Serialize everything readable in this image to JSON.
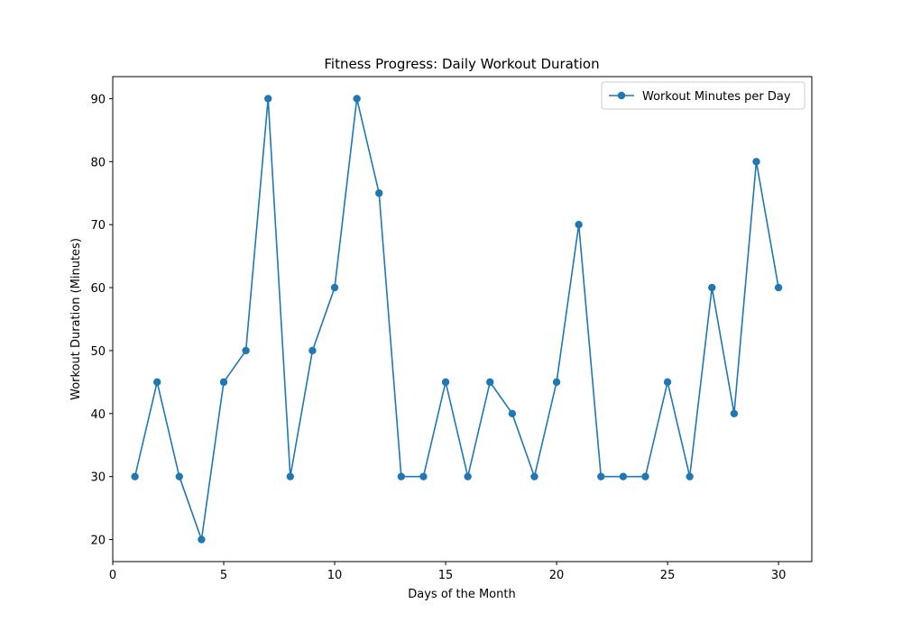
{
  "chart_data": {
    "type": "line",
    "title": "Fitness Progress: Daily Workout Duration",
    "xlabel": "Days of the Month",
    "ylabel": "Workout Duration (Minutes)",
    "xlim": [
      0,
      31.5
    ],
    "ylim": [
      16.5,
      93.5
    ],
    "xticks": [
      0,
      5,
      10,
      15,
      20,
      25,
      30
    ],
    "yticks": [
      20,
      30,
      40,
      50,
      60,
      70,
      80,
      90
    ],
    "legend_position": "top-right",
    "grid": false,
    "series": [
      {
        "name": "Workout Minutes per Day",
        "color": "#1f77b4",
        "marker": "circle",
        "x": [
          1,
          2,
          3,
          4,
          5,
          6,
          7,
          8,
          9,
          10,
          11,
          12,
          13,
          14,
          15,
          16,
          17,
          18,
          19,
          20,
          21,
          22,
          23,
          24,
          25,
          26,
          27,
          28,
          29,
          30
        ],
        "y": [
          30,
          45,
          30,
          20,
          45,
          50,
          90,
          30,
          50,
          60,
          90,
          75,
          30,
          30,
          45,
          30,
          45,
          40,
          30,
          45,
          70,
          30,
          30,
          30,
          45,
          30,
          60,
          40,
          80,
          60
        ]
      }
    ]
  }
}
